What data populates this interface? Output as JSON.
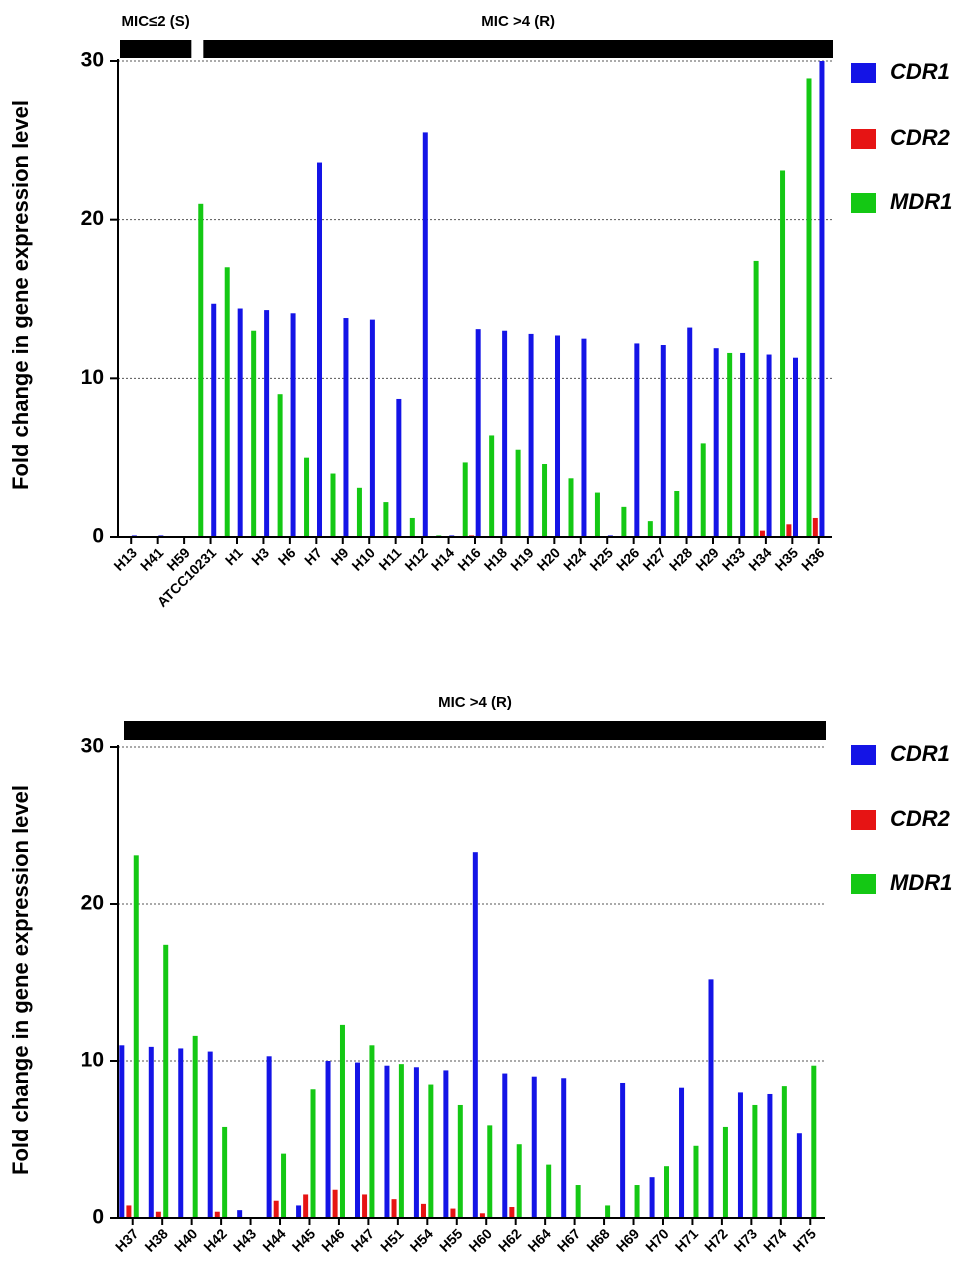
{
  "chart_data": [
    {
      "type": "bar",
      "ylabel": "Fold change in gene expression level",
      "ylim": [
        0,
        30
      ],
      "yticks": [
        0,
        10,
        20,
        30
      ],
      "grid": true,
      "legend": "right",
      "groups": [
        {
          "label": "MIC≤2 (S)",
          "span": 3
        },
        {
          "label": "MIC >4 (R)",
          "span": 24
        }
      ],
      "categories": [
        "H13",
        "H41",
        "H59",
        "ATCC10231",
        "H1",
        "H3",
        "H6",
        "H7",
        "H9",
        "H10",
        "H11",
        "H12",
        "H14",
        "H16",
        "H18",
        "H19",
        "H20",
        "H24",
        "H25",
        "H26",
        "H27",
        "H28",
        "H29",
        "H33",
        "H34",
        "H35",
        "H36"
      ],
      "series": [
        {
          "name": "CDR1",
          "color": "#1414e6",
          "values": [
            0.1,
            0.1,
            0.05,
            14.7,
            14.4,
            14.3,
            14.1,
            23.6,
            13.8,
            13.7,
            8.7,
            25.5,
            0.1,
            13.1,
            13.0,
            12.8,
            12.7,
            12.5,
            0.1,
            12.2,
            12.1,
            13.2,
            11.9,
            11.6,
            11.5,
            11.3,
            30.0
          ]
        },
        {
          "name": "CDR2",
          "color": "#e61414",
          "values": [
            0,
            0,
            0,
            0,
            0,
            0,
            0,
            0,
            0,
            0,
            0,
            0,
            0,
            0.1,
            0,
            0,
            0,
            0,
            0,
            0,
            0,
            0,
            0,
            0,
            0.4,
            0.8,
            1.2
          ]
        },
        {
          "name": "MDR1",
          "color": "#14c814",
          "values": [
            0.05,
            0.05,
            0.05,
            21.0,
            17.0,
            13.0,
            9.0,
            5.0,
            4.0,
            3.1,
            2.2,
            1.2,
            0.1,
            4.7,
            6.4,
            5.5,
            4.6,
            3.7,
            2.8,
            1.9,
            1.0,
            2.9,
            5.9,
            11.6,
            17.4,
            23.1,
            28.9
          ]
        }
      ]
    },
    {
      "type": "bar",
      "ylabel": "Fold change in gene expression level",
      "ylim": [
        0,
        30
      ],
      "yticks": [
        0,
        10,
        20,
        30
      ],
      "grid": true,
      "legend": "right",
      "groups": [
        {
          "label": "MIC >4 (R)",
          "span": 24
        }
      ],
      "categories": [
        "H37",
        "H38",
        "H40",
        "H42",
        "H43",
        "H44",
        "H45",
        "H46",
        "H47",
        "H51",
        "H54",
        "H55",
        "H60",
        "H62",
        "H64",
        "H67",
        "H68",
        "H69",
        "H70",
        "H71",
        "H72",
        "H73",
        "H74",
        "H75"
      ],
      "series": [
        {
          "name": "CDR1",
          "color": "#1414e6",
          "values": [
            11.0,
            10.9,
            10.8,
            10.6,
            0.5,
            10.3,
            0.8,
            10.0,
            9.9,
            9.7,
            9.6,
            9.4,
            23.3,
            9.2,
            9.0,
            8.9,
            0,
            8.6,
            2.6,
            8.3,
            15.2,
            8.0,
            7.9,
            5.4
          ]
        },
        {
          "name": "CDR2",
          "color": "#e61414",
          "values": [
            0.8,
            0.4,
            0,
            0.4,
            0,
            1.1,
            1.5,
            1.8,
            1.5,
            1.2,
            0.9,
            0.6,
            0.3,
            0.7,
            0,
            0,
            0,
            0,
            0,
            0,
            0,
            0,
            0,
            0
          ]
        },
        {
          "name": "MDR1",
          "color": "#14c814",
          "values": [
            23.1,
            17.4,
            11.6,
            5.8,
            0,
            4.1,
            8.2,
            12.3,
            11.0,
            9.8,
            8.5,
            7.2,
            5.9,
            4.7,
            3.4,
            2.1,
            0.8,
            2.1,
            3.3,
            4.6,
            5.8,
            7.2,
            8.4,
            9.7
          ]
        }
      ]
    }
  ]
}
